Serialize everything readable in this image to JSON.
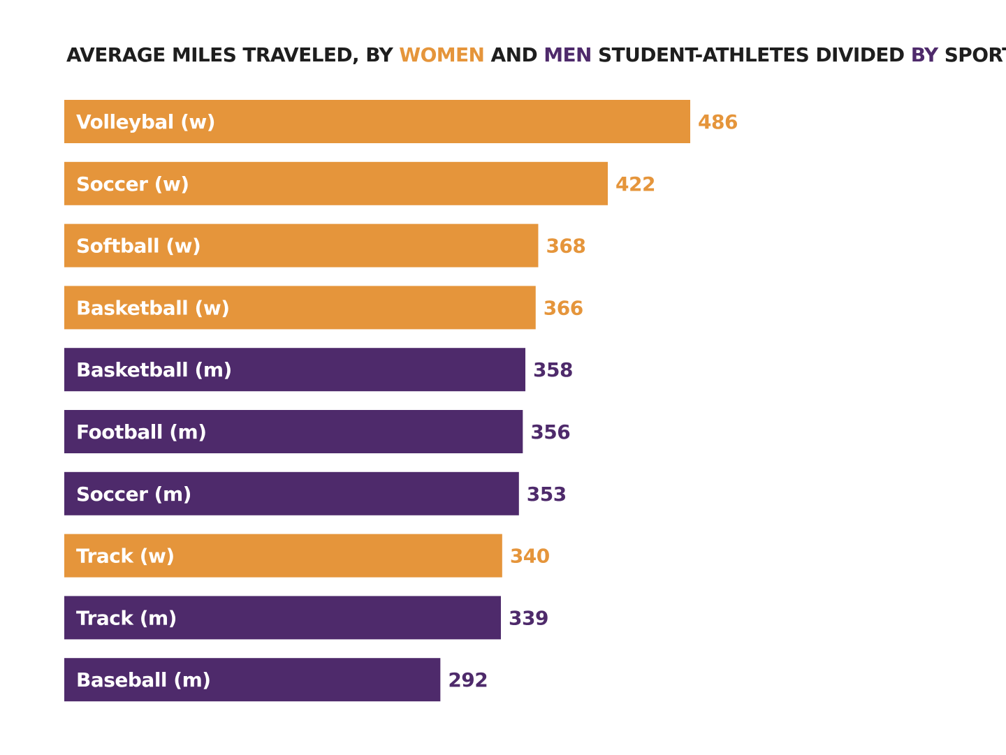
{
  "title": {
    "parts": [
      {
        "text": "AVERAGE MILES TRAVELED, BY ",
        "style": "plain"
      },
      {
        "text": "WOMEN",
        "style": "women"
      },
      {
        "text": " AND ",
        "style": "plain"
      },
      {
        "text": "MEN",
        "style": "men"
      },
      {
        "text": " STUDENT-ATHLETES DIVIDED ",
        "style": "plain"
      },
      {
        "text": "BY",
        "style": "men"
      },
      {
        "text": " SPORTS",
        "style": "plain"
      }
    ]
  },
  "colors": {
    "women": "#e5953b",
    "men": "#4e2a6b",
    "title": "#1e1e1e"
  },
  "chart_data": {
    "type": "bar",
    "orientation": "horizontal",
    "title": "AVERAGE MILES TRAVELED, BY WOMEN AND MEN STUDENT-ATHLETES DIVIDED BY SPORTS",
    "categories": [
      "Volleybal (w)",
      "Soccer (w)",
      "Softball (w)",
      "Basketball (w)",
      "Basketball (m)",
      "Football (m)",
      "Soccer (m)",
      "Track (w)",
      "Track (m)",
      "Baseball (m)"
    ],
    "values": [
      486,
      422,
      368,
      366,
      358,
      356,
      353,
      340,
      339,
      292
    ],
    "groups": [
      "women",
      "women",
      "women",
      "women",
      "men",
      "men",
      "men",
      "women",
      "men",
      "men"
    ],
    "xlim": [
      0,
      486
    ],
    "grid": false,
    "legend": "none",
    "xlabel": "",
    "ylabel": ""
  }
}
